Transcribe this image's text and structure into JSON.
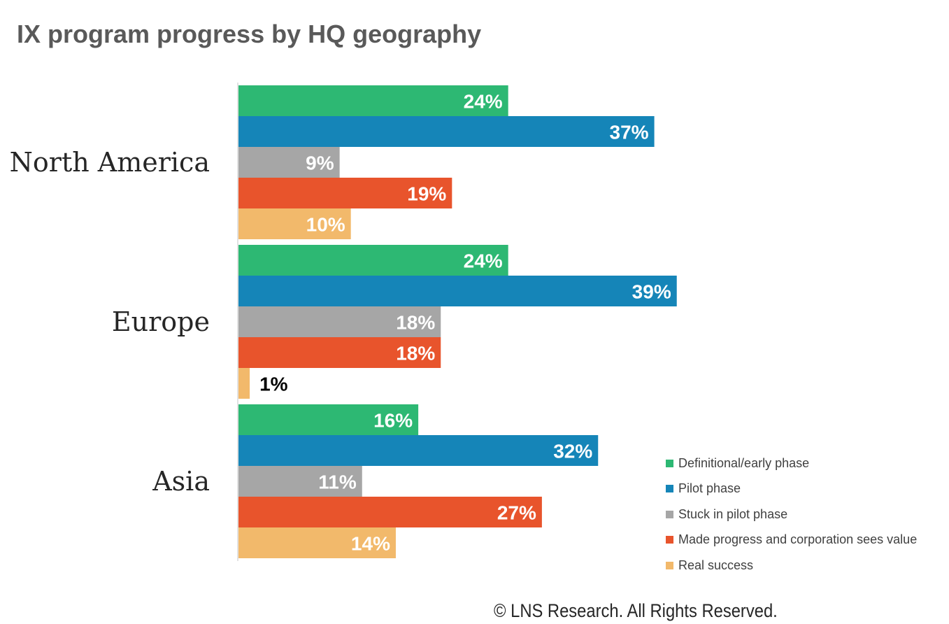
{
  "title": "IX program progress by HQ geography",
  "copyright": "© LNS Research. All Rights Reserved.",
  "chart_data": {
    "type": "bar",
    "orientation": "horizontal",
    "title": "IX program progress by HQ geography",
    "categories": [
      "North America",
      "Europe",
      "Asia"
    ],
    "series": [
      {
        "name": "Definitional/early phase",
        "color": "#2db873",
        "values": [
          24,
          24,
          16
        ],
        "labels": [
          "24%",
          "24%",
          "16%"
        ]
      },
      {
        "name": "Pilot phase",
        "color": "#1585b8",
        "values": [
          37,
          39,
          32
        ],
        "labels": [
          "37%",
          "39%",
          "32%"
        ]
      },
      {
        "name": "Stuck in pilot phase",
        "color": "#a6a6a6",
        "values": [
          9,
          18,
          11
        ],
        "labels": [
          "9%",
          "18%",
          "11%"
        ]
      },
      {
        "name": "Made progress and corporation sees value",
        "color": "#e8542c",
        "values": [
          19,
          18,
          27
        ],
        "labels": [
          "19%",
          "18%",
          "27%"
        ]
      },
      {
        "name": "Real success",
        "color": "#f2b96b",
        "values": [
          10,
          1,
          14
        ],
        "labels": [
          "10%",
          "1%",
          "14%"
        ]
      }
    ],
    "value_unit": "%",
    "xlim": [
      0,
      40
    ],
    "grid": false,
    "legend_position": "bottom-right",
    "data_labels": "inside-end"
  }
}
